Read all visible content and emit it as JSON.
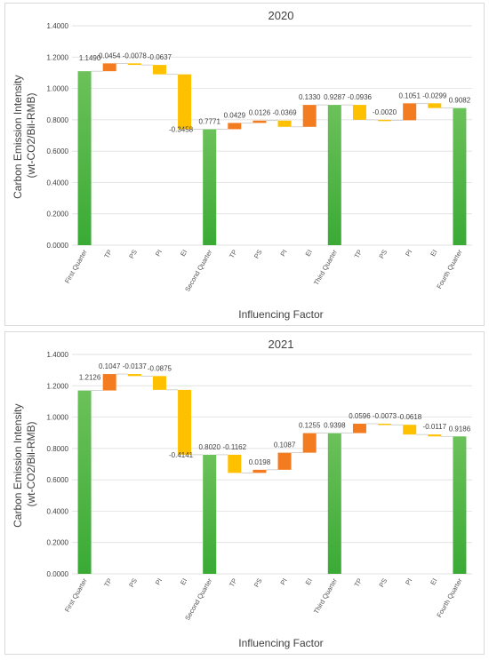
{
  "chart_data": [
    {
      "type": "bar",
      "subtype": "waterfall",
      "title": "2020",
      "xlabel": "Influencing Factor",
      "ylabel_line1": "Carbon Emission Intensity",
      "ylabel_line2": "(wt-CO2/Bil-RMB)",
      "ylim": [
        0,
        1.4
      ],
      "yticks": [
        "0.0000",
        "0.2000",
        "0.4000",
        "0.6000",
        "0.8000",
        "1.0000",
        "1.2000",
        "1.4000"
      ],
      "grid": true,
      "legend": "none",
      "categories": [
        "First Quarter",
        "TP",
        "PS",
        "PI",
        "EI",
        "Second Quarter",
        "TP",
        "PS",
        "PI",
        "EI",
        "Third Quarter",
        "TP",
        "PS",
        "PI",
        "EI",
        "Fourth Quarter"
      ],
      "labels": [
        "1.1490",
        "0.0454",
        "-0.0078",
        "-0.0637",
        "-0.3458",
        "0.7771",
        "0.0429",
        "0.0126",
        "-0.0369",
        "0.1330",
        "0.9287",
        "-0.0936",
        "-0.0020",
        "0.1051",
        "-0.0299",
        "0.9082"
      ],
      "bars": [
        {
          "kind": "total",
          "start": 0,
          "end": 1.11
        },
        {
          "kind": "increase",
          "start": 1.11,
          "end": 1.16
        },
        {
          "kind": "decrease",
          "start": 1.16,
          "end": 1.15
        },
        {
          "kind": "decrease",
          "start": 1.15,
          "end": 1.09
        },
        {
          "kind": "decrease",
          "start": 1.09,
          "end": 0.74
        },
        {
          "kind": "total",
          "start": 0,
          "end": 0.74
        },
        {
          "kind": "increase",
          "start": 0.74,
          "end": 0.78
        },
        {
          "kind": "increase",
          "start": 0.78,
          "end": 0.795
        },
        {
          "kind": "decrease",
          "start": 0.795,
          "end": 0.755
        },
        {
          "kind": "increase",
          "start": 0.755,
          "end": 0.895
        },
        {
          "kind": "total",
          "start": 0,
          "end": 0.895
        },
        {
          "kind": "decrease",
          "start": 0.895,
          "end": 0.8
        },
        {
          "kind": "decrease",
          "start": 0.8,
          "end": 0.797
        },
        {
          "kind": "increase",
          "start": 0.797,
          "end": 0.905
        },
        {
          "kind": "decrease",
          "start": 0.905,
          "end": 0.875
        },
        {
          "kind": "total",
          "start": 0,
          "end": 0.875
        }
      ],
      "colors": {
        "total": "#3aaa35",
        "increase": "#f47c20",
        "decrease": "#ffc000"
      }
    },
    {
      "type": "bar",
      "subtype": "waterfall",
      "title": "2021",
      "xlabel": "Influencing Factor",
      "ylabel_line1": "Carbon Emission Intensity",
      "ylabel_line2": "(wt-CO2/Bil-RMB)",
      "ylim": [
        0,
        1.4
      ],
      "yticks": [
        "0.0000",
        "0.2000",
        "0.4000",
        "0.6000",
        "0.8000",
        "1.0000",
        "1.2000",
        "1.4000"
      ],
      "grid": true,
      "legend": "none",
      "categories": [
        "First Quarter",
        "TP",
        "PS",
        "PI",
        "EI",
        "Second Quarter",
        "TP",
        "PS",
        "PI",
        "EI",
        "Third Quarter",
        "TP",
        "PS",
        "PI",
        "EI",
        "Fourth Quarter"
      ],
      "labels": [
        "1.2126",
        "0.1047",
        "-0.0137",
        "-0.0875",
        "-0.4141",
        "0.8020",
        "-0.1162",
        "0.0198",
        "0.1087",
        "0.1255",
        "0.9398",
        "0.0596",
        "-0.0073",
        "-0.0618",
        "-0.0117",
        "0.9186"
      ],
      "bars": [
        {
          "kind": "total",
          "start": 0,
          "end": 1.17
        },
        {
          "kind": "increase",
          "start": 1.17,
          "end": 1.275
        },
        {
          "kind": "decrease",
          "start": 1.275,
          "end": 1.262
        },
        {
          "kind": "decrease",
          "start": 1.262,
          "end": 1.174
        },
        {
          "kind": "decrease",
          "start": 1.174,
          "end": 0.76
        },
        {
          "kind": "total",
          "start": 0,
          "end": 0.76
        },
        {
          "kind": "decrease",
          "start": 0.76,
          "end": 0.644
        },
        {
          "kind": "increase",
          "start": 0.644,
          "end": 0.664
        },
        {
          "kind": "increase",
          "start": 0.664,
          "end": 0.773
        },
        {
          "kind": "increase",
          "start": 0.773,
          "end": 0.898
        },
        {
          "kind": "total",
          "start": 0,
          "end": 0.898
        },
        {
          "kind": "increase",
          "start": 0.898,
          "end": 0.958
        },
        {
          "kind": "decrease",
          "start": 0.958,
          "end": 0.951
        },
        {
          "kind": "decrease",
          "start": 0.951,
          "end": 0.889
        },
        {
          "kind": "decrease",
          "start": 0.889,
          "end": 0.877
        },
        {
          "kind": "total",
          "start": 0,
          "end": 0.877
        }
      ],
      "colors": {
        "total": "#3aaa35",
        "increase": "#f47c20",
        "decrease": "#ffc000"
      }
    }
  ]
}
